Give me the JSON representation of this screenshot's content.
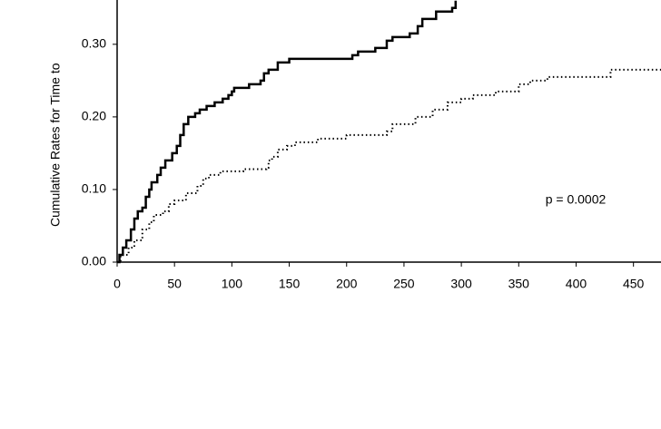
{
  "chart_data": {
    "type": "step",
    "y_label": "Cumulative Rates for Time to",
    "annotation": "p = 0.0002",
    "xlim": [
      0,
      474
    ],
    "xticks": [
      0,
      50,
      100,
      150,
      200,
      250,
      300,
      350,
      400,
      450
    ],
    "ylim": [
      0,
      0.361
    ],
    "yticks": [
      {
        "value": 0,
        "label": "0.00"
      },
      {
        "value": 0.1,
        "label": "0.10"
      },
      {
        "value": 0.2,
        "label": "0.20"
      },
      {
        "value": 0.3,
        "label": "0.30"
      }
    ],
    "series": [
      {
        "color": "#000000",
        "style": "solid",
        "x": [
          0,
          2,
          5,
          8,
          12,
          15,
          18,
          22,
          25,
          28,
          30,
          35,
          38,
          42,
          48,
          52,
          55,
          58,
          62,
          68,
          72,
          78,
          85,
          92,
          97,
          100,
          102,
          115,
          125,
          128,
          132,
          140,
          150,
          205,
          210,
          225,
          235,
          240,
          255,
          262,
          266,
          278,
          292,
          295
        ],
        "values": [
          0,
          0.01,
          0.02,
          0.03,
          0.045,
          0.06,
          0.07,
          0.075,
          0.09,
          0.1,
          0.11,
          0.12,
          0.13,
          0.14,
          0.15,
          0.16,
          0.175,
          0.19,
          0.2,
          0.205,
          0.21,
          0.215,
          0.22,
          0.225,
          0.23,
          0.235,
          0.24,
          0.245,
          0.25,
          0.26,
          0.265,
          0.275,
          0.28,
          0.285,
          0.29,
          0.295,
          0.305,
          0.31,
          0.315,
          0.325,
          0.335,
          0.345,
          0.35,
          0.36
        ]
      },
      {
        "color": "#000000",
        "style": "dotted",
        "x": [
          0,
          3,
          10,
          15,
          22,
          28,
          32,
          40,
          45,
          50,
          60,
          70,
          75,
          80,
          90,
          110,
          130,
          132,
          135,
          140,
          148,
          155,
          175,
          200,
          235,
          240,
          260,
          275,
          288,
          300,
          310,
          330,
          350,
          360,
          375,
          430,
          474
        ],
        "values": [
          0,
          0.01,
          0.02,
          0.03,
          0.045,
          0.055,
          0.065,
          0.07,
          0.08,
          0.085,
          0.095,
          0.105,
          0.115,
          0.12,
          0.125,
          0.128,
          0.13,
          0.14,
          0.145,
          0.155,
          0.16,
          0.165,
          0.17,
          0.175,
          0.18,
          0.19,
          0.2,
          0.21,
          0.22,
          0.225,
          0.23,
          0.235,
          0.245,
          0.25,
          0.255,
          0.265,
          0.265
        ]
      }
    ]
  }
}
